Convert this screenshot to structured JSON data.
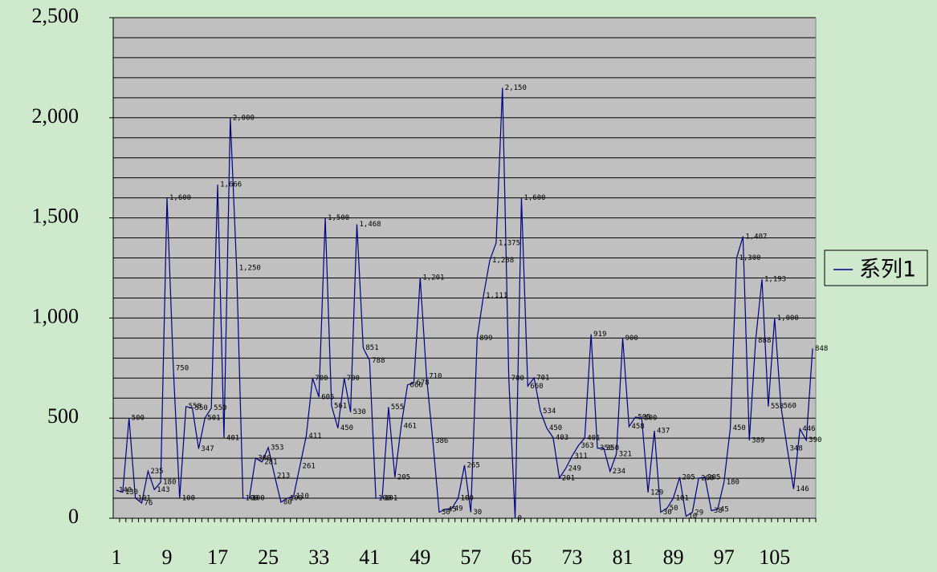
{
  "chart_data": {
    "type": "line",
    "categories": [
      1,
      null,
      null,
      null,
      null,
      null,
      null,
      null,
      9,
      null,
      null,
      null,
      null,
      null,
      null,
      null,
      17,
      null,
      null,
      null,
      null,
      null,
      null,
      null,
      25,
      null,
      null,
      null,
      null,
      null,
      null,
      null,
      33,
      null,
      null,
      null,
      null,
      null,
      null,
      null,
      41,
      null,
      null,
      null,
      null,
      null,
      null,
      null,
      49,
      null,
      null,
      null,
      null,
      null,
      null,
      null,
      57,
      null,
      null,
      null,
      null,
      null,
      null,
      null,
      65,
      null,
      null,
      null,
      null,
      null,
      null,
      null,
      73,
      null,
      null,
      null,
      null,
      null,
      null,
      null,
      81,
      null,
      null,
      null,
      null,
      null,
      null,
      null,
      89,
      null,
      null,
      null,
      null,
      null,
      null,
      null,
      97,
      null,
      null,
      null,
      null,
      null,
      null,
      null,
      105,
      null,
      null,
      null,
      null,
      null,
      null
    ],
    "series": [
      {
        "name": "系列1",
        "color": "#000080",
        "values": [
          140,
          130,
          500,
          101,
          76,
          235,
          143,
          180,
          1600,
          750,
          100,
          558,
          550,
          347,
          501,
          550,
          1666,
          401,
          2000,
          1250,
          100,
          100,
          300,
          281,
          353,
          213,
          80,
          100,
          110,
          261,
          411,
          700,
          605,
          1500,
          561,
          450,
          700,
          530,
          1468,
          851,
          788,
          100,
          101,
          555,
          205,
          461,
          666,
          678,
          1201,
          710,
          386,
          30,
          45,
          49,
          100,
          265,
          30,
          899,
          1111,
          1288,
          1375,
          2150,
          700,
          0,
          1600,
          660,
          701,
          534,
          450,
          403,
          201,
          249,
          311,
          363,
          401,
          919,
          350,
          350,
          234,
          321,
          900,
          458,
          505,
          500,
          129,
          437,
          30,
          50,
          101,
          205,
          10,
          29,
          200,
          205,
          38,
          45,
          180,
          450,
          1300,
          1407,
          389,
          888,
          1193,
          558,
          1000,
          560,
          348,
          146,
          446,
          390,
          848
        ],
        "value_labels": [
          "140",
          "130",
          "500",
          "101",
          "76",
          "235",
          "143",
          "180",
          "1,600",
          "750",
          "100",
          "558",
          "550",
          "347",
          "501",
          "550",
          "1,666",
          "401",
          "2,000",
          "1,250",
          "100",
          "100",
          "300",
          "281",
          "353",
          "213",
          "80",
          "100",
          "110",
          "261",
          "411",
          "700",
          "605",
          "1,500",
          "561",
          "450",
          "700",
          "530",
          "1,468",
          "851",
          "788",
          "100",
          "101",
          "555",
          "205",
          "461",
          "666",
          "678",
          "1,201",
          "710",
          "386",
          "30",
          "45",
          "49",
          "100",
          "265",
          "30",
          "899",
          "1,111",
          "1,288",
          "1,375",
          "2,150",
          "700",
          "0",
          "1,600",
          "660",
          "701",
          "534",
          "450",
          "403",
          "201",
          "249",
          "311",
          "363",
          "401",
          "919",
          "350",
          "350",
          "234",
          "321",
          "900",
          "458",
          "505",
          "500",
          "129",
          "437",
          "30",
          "50",
          "101",
          "205",
          "10",
          "29",
          "200",
          "205",
          "38",
          "45",
          "180",
          "450",
          "1,300",
          "1,407",
          "389",
          "888",
          "1,193",
          "558",
          "1,000",
          "560",
          "348",
          "146",
          "446",
          "390",
          "848"
        ]
      }
    ],
    "ylim": [
      0,
      2500
    ],
    "yticks": [
      0,
      500,
      {
        "value": 1000,
        "label": "1,000"
      },
      {
        "value": 1500,
        "label": "1,500"
      },
      {
        "value": 2000,
        "label": "2,000"
      },
      {
        "value": 2500,
        "label": "2,500"
      }
    ],
    "ygrid": [
      0,
      100,
      200,
      300,
      400,
      500,
      600,
      700,
      800,
      900,
      1000,
      1100,
      1200,
      1300,
      1400,
      1500,
      1600,
      1700,
      1800,
      1900,
      2000,
      2100,
      2200,
      2300,
      2400,
      2500
    ],
    "grid": true,
    "legend": "right"
  }
}
